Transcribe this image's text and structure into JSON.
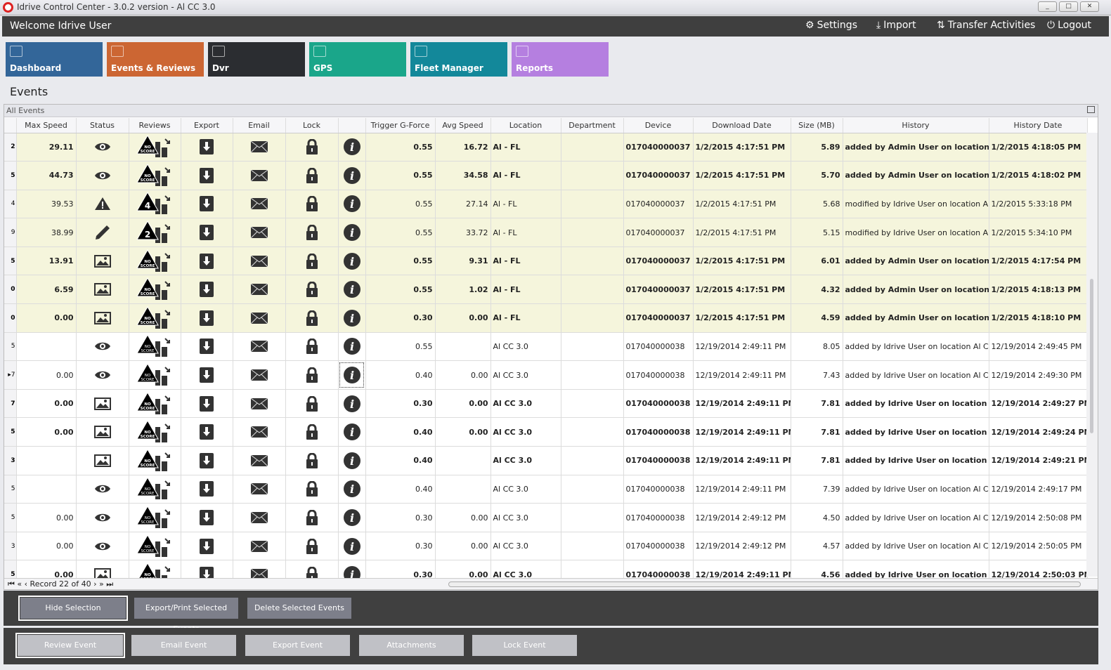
{
  "window": {
    "title": "Idrive Control Center - 3.0.2 version - Al CC 3.0"
  },
  "topbar": {
    "welcome": "Welcome Idrive User",
    "settings": "Settings",
    "import": "Import",
    "transfer": "Transfer Activities",
    "logout": "Logout"
  },
  "tiles": [
    {
      "label": "Dashboard",
      "color": "#336699",
      "icon": "chart-line-icon"
    },
    {
      "label": "Events & Reviews",
      "color": "#cc6633",
      "icon": "clipboard-check-icon"
    },
    {
      "label": "Dvr",
      "color": "#2b2d31",
      "icon": "dvr-icon"
    },
    {
      "label": "GPS",
      "color": "#1aa68a",
      "icon": "map-pin-icon"
    },
    {
      "label": "Fleet Manager",
      "color": "#13889a",
      "icon": "vehicles-icon"
    },
    {
      "label": "Reports",
      "color": "#b57fe0",
      "icon": "pie-chart-icon"
    }
  ],
  "page_title": "Events",
  "grid": {
    "caption": "All Events",
    "columns": [
      "",
      "Max Speed",
      "Status",
      "Reviews",
      "Export",
      "Email",
      "Lock",
      "",
      "Trigger G-Force",
      "Avg Speed",
      "Location",
      "Department",
      "Device",
      "Download Date",
      "Size (MB)",
      "History",
      "History Date"
    ],
    "rows": [
      {
        "id": "2",
        "bold": true,
        "yellow": true,
        "max": "29.11",
        "status": "eye-icon",
        "score": "NO SCORE",
        "g": "0.55",
        "avg": "16.72",
        "loc": "Al - FL",
        "dept": "",
        "dev": "017040000037",
        "dl": "1/2/2015 4:17:51 PM",
        "size": "5.89",
        "hist": "added by Admin User on location ...",
        "hdate": "1/2/2015 4:18:05 PM"
      },
      {
        "id": "5",
        "bold": true,
        "yellow": true,
        "max": "44.73",
        "status": "eye-icon",
        "score": "NO SCORE",
        "g": "0.55",
        "avg": "34.58",
        "loc": "Al - FL",
        "dept": "",
        "dev": "017040000037",
        "dl": "1/2/2015 4:17:51 PM",
        "size": "5.70",
        "hist": "added by Admin User on location ...",
        "hdate": "1/2/2015 4:18:02 PM"
      },
      {
        "id": "4",
        "bold": false,
        "yellow": true,
        "max": "39.53",
        "status": "warning-icon",
        "score": "4",
        "g": "0.55",
        "avg": "27.14",
        "loc": "Al - FL",
        "dept": "",
        "dev": "017040000037",
        "dl": "1/2/2015 4:17:51 PM",
        "size": "5.68",
        "hist": "modified by Idrive User on location Al C...",
        "hdate": "1/2/2015 5:33:18 PM"
      },
      {
        "id": "9",
        "bold": false,
        "yellow": true,
        "max": "38.99",
        "status": "pencil-icon",
        "score": "2",
        "g": "0.55",
        "avg": "33.72",
        "loc": "Al - FL",
        "dept": "",
        "dev": "017040000037",
        "dl": "1/2/2015 4:17:51 PM",
        "size": "5.15",
        "hist": "modified by Idrive User on location Al C...",
        "hdate": "1/2/2015 5:34:10 PM"
      },
      {
        "id": "5",
        "bold": true,
        "yellow": true,
        "max": "13.91",
        "status": "image-icon",
        "score": "NO SCORE",
        "g": "0.55",
        "avg": "9.31",
        "loc": "Al - FL",
        "dept": "",
        "dev": "017040000037",
        "dl": "1/2/2015 4:17:51 PM",
        "size": "6.01",
        "hist": "added by Admin User on location ...",
        "hdate": "1/2/2015 4:17:54 PM"
      },
      {
        "id": "0",
        "bold": true,
        "yellow": true,
        "max": "6.59",
        "status": "image-icon",
        "score": "NO SCORE",
        "g": "0.55",
        "avg": "1.02",
        "loc": "Al - FL",
        "dept": "",
        "dev": "017040000037",
        "dl": "1/2/2015 4:17:51 PM",
        "size": "4.32",
        "hist": "added by Admin User on location ...",
        "hdate": "1/2/2015 4:18:13 PM"
      },
      {
        "id": "0",
        "bold": true,
        "yellow": true,
        "max": "0.00",
        "status": "image-icon",
        "score": "NO SCORE",
        "g": "0.30",
        "avg": "0.00",
        "loc": "Al - FL",
        "dept": "",
        "dev": "017040000037",
        "dl": "1/2/2015 4:17:51 PM",
        "size": "4.59",
        "hist": "added by Admin User on location ...",
        "hdate": "1/2/2015 4:18:10 PM"
      },
      {
        "id": "5",
        "bold": false,
        "yellow": false,
        "max": "",
        "status": "eye-icon",
        "score": "NO SCORE",
        "g": "0.55",
        "avg": "",
        "loc": "Al CC 3.0",
        "dept": "",
        "dev": "017040000038",
        "dl": "12/19/2014 2:49:11 PM",
        "size": "8.05",
        "hist": "added by Idrive User on location Al CC ...",
        "hdate": "12/19/2014 2:49:45 PM"
      },
      {
        "id": "7",
        "bold": false,
        "yellow": false,
        "current": true,
        "max": "0.00",
        "status": "eye-icon",
        "score": "NO SCORE",
        "g": "0.40",
        "avg": "0.00",
        "loc": "Al CC 3.0",
        "dept": "",
        "dev": "017040000038",
        "dl": "12/19/2014 2:49:11 PM",
        "size": "7.43",
        "hist": "added by Idrive User on location Al CC ...",
        "hdate": "12/19/2014 2:49:30 PM"
      },
      {
        "id": "7",
        "bold": true,
        "yellow": false,
        "max": "0.00",
        "status": "image-icon",
        "score": "NO SCORE",
        "g": "0.30",
        "avg": "0.00",
        "loc": "Al CC 3.0",
        "dept": "",
        "dev": "017040000038",
        "dl": "12/19/2014 2:49:11 PM",
        "size": "7.81",
        "hist": "added by Idrive User on location ...",
        "hdate": "12/19/2014 2:49:27 PM"
      },
      {
        "id": "5",
        "bold": true,
        "yellow": false,
        "max": "0.00",
        "status": "image-icon",
        "score": "NO SCORE",
        "g": "0.40",
        "avg": "0.00",
        "loc": "Al CC 3.0",
        "dept": "",
        "dev": "017040000038",
        "dl": "12/19/2014 2:49:11 PM",
        "size": "7.81",
        "hist": "added by Idrive User on location ...",
        "hdate": "12/19/2014 2:49:24 PM"
      },
      {
        "id": "3",
        "bold": true,
        "yellow": false,
        "max": "",
        "status": "image-icon",
        "score": "NO SCORE",
        "g": "0.40",
        "avg": "",
        "loc": "Al CC 3.0",
        "dept": "",
        "dev": "017040000038",
        "dl": "12/19/2014 2:49:11 PM",
        "size": "7.81",
        "hist": "added by Idrive User on location ...",
        "hdate": "12/19/2014 2:49:21 PM"
      },
      {
        "id": "5",
        "bold": false,
        "yellow": false,
        "max": "",
        "status": "eye-icon",
        "score": "NO SCORE",
        "g": "0.40",
        "avg": "",
        "loc": "Al CC 3.0",
        "dept": "",
        "dev": "017040000038",
        "dl": "12/19/2014 2:49:11 PM",
        "size": "7.39",
        "hist": "added by Idrive User on location Al CC ...",
        "hdate": "12/19/2014 2:49:17 PM"
      },
      {
        "id": "5",
        "bold": false,
        "yellow": false,
        "max": "0.00",
        "status": "eye-icon",
        "score": "NO SCORE",
        "g": "0.30",
        "avg": "0.00",
        "loc": "Al CC 3.0",
        "dept": "",
        "dev": "017040000038",
        "dl": "12/19/2014 2:49:12 PM",
        "size": "4.50",
        "hist": "added by Idrive User on location Al CC ...",
        "hdate": "12/19/2014 2:50:08 PM"
      },
      {
        "id": "3",
        "bold": false,
        "yellow": false,
        "max": "0.00",
        "status": "eye-icon",
        "score": "NO SCORE",
        "g": "0.30",
        "avg": "0.00",
        "loc": "Al CC 3.0",
        "dept": "",
        "dev": "017040000038",
        "dl": "12/19/2014 2:49:12 PM",
        "size": "4.57",
        "hist": "added by Idrive User on location Al CC ...",
        "hdate": "12/19/2014 2:50:05 PM"
      },
      {
        "id": "5",
        "bold": true,
        "yellow": false,
        "max": "0.00",
        "status": "image-icon",
        "score": "NO SCORE",
        "g": "0.30",
        "avg": "0.00",
        "loc": "Al CC 3.0",
        "dept": "",
        "dev": "017040000038",
        "dl": "12/19/2014 2:49:11 PM",
        "size": "4.56",
        "hist": "added by Idrive User on location ...",
        "hdate": "12/19/2014 2:50:03 PM"
      }
    ],
    "navigator": "Record 22 of 40"
  },
  "actions": {
    "hide_selection": "Hide Selection",
    "export_print": "Export/Print Selected Events",
    "delete_selected": "Delete Selected  Events"
  },
  "event_actions": {
    "review": "Review Event",
    "email": "Email Event",
    "export": "Export Event",
    "attachments": "Attachments",
    "lock": "Lock Event"
  }
}
